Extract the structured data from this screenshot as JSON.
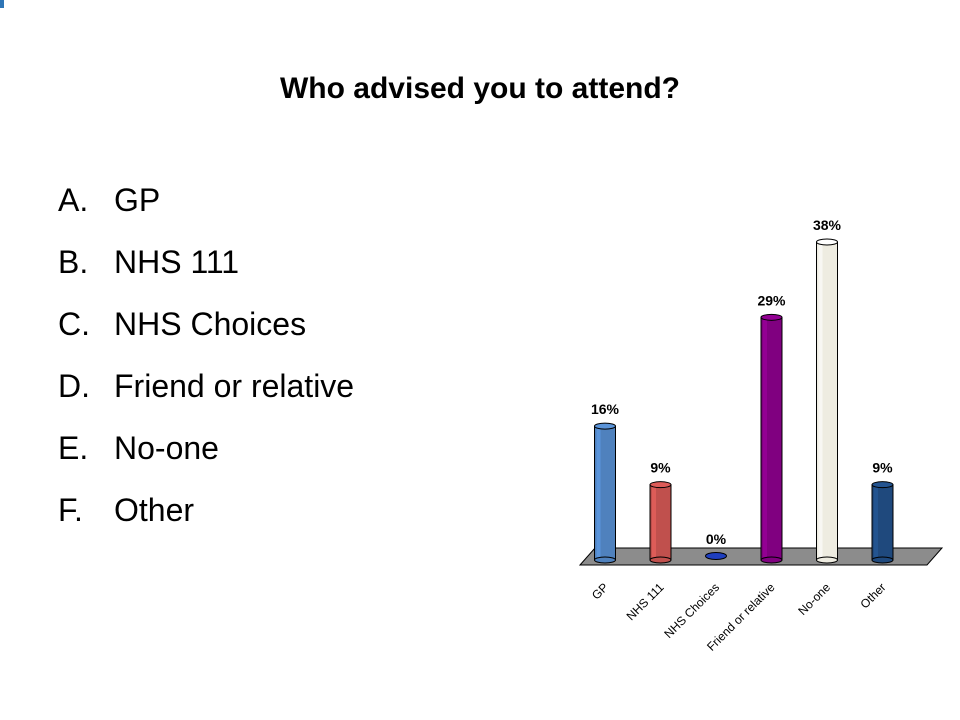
{
  "slide": {
    "title": "Who advised you to attend?",
    "options": [
      {
        "letter": "A.",
        "text": "GP"
      },
      {
        "letter": "B.",
        "text": "NHS 111"
      },
      {
        "letter": "C.",
        "text": "NHS Choices"
      },
      {
        "letter": "D.",
        "text": "Friend or relative"
      },
      {
        "letter": "E.",
        "text": "No-one"
      },
      {
        "letter": "F.",
        "text": "Other"
      }
    ]
  },
  "chart_data": {
    "type": "bar",
    "categories": [
      "GP",
      "NHS 111",
      "NHS Choices",
      "Friend or relative",
      "No-one",
      "Other"
    ],
    "values": [
      16,
      9,
      0,
      29,
      38,
      9
    ],
    "value_labels": [
      "16%",
      "9%",
      "0%",
      "29%",
      "38%",
      "9%"
    ],
    "colors": [
      "#4f81bd",
      "#c0504d",
      "#1f3fbf",
      "#800080",
      "#eeece1",
      "#1f497d"
    ],
    "title": "",
    "xlabel": "",
    "ylabel": "",
    "ylim": [
      0,
      38
    ],
    "grid": false,
    "legend": "none",
    "style": "3d"
  }
}
